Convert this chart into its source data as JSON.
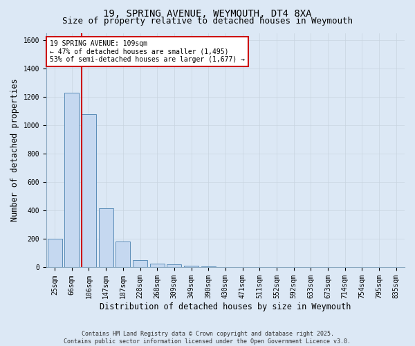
{
  "title_line1": "19, SPRING AVENUE, WEYMOUTH, DT4 8XA",
  "title_line2": "Size of property relative to detached houses in Weymouth",
  "xlabel": "Distribution of detached houses by size in Weymouth",
  "ylabel": "Number of detached properties",
  "categories": [
    "25sqm",
    "66sqm",
    "106sqm",
    "147sqm",
    "187sqm",
    "228sqm",
    "268sqm",
    "309sqm",
    "349sqm",
    "390sqm",
    "430sqm",
    "471sqm",
    "511sqm",
    "552sqm",
    "592sqm",
    "633sqm",
    "673sqm",
    "714sqm",
    "754sqm",
    "795sqm",
    "835sqm"
  ],
  "values": [
    200,
    1230,
    1080,
    415,
    180,
    50,
    25,
    20,
    10,
    8,
    0,
    0,
    0,
    0,
    0,
    0,
    0,
    0,
    0,
    0,
    0
  ],
  "bar_color": "#c5d8f0",
  "bar_edge_color": "#5b8db8",
  "vline_color": "#cc0000",
  "annotation_text": "19 SPRING AVENUE: 109sqm\n← 47% of detached houses are smaller (1,495)\n53% of semi-detached houses are larger (1,677) →",
  "annotation_box_color": "#ffffff",
  "annotation_box_edge_color": "#cc0000",
  "ylim": [
    0,
    1650
  ],
  "yticks": [
    0,
    200,
    400,
    600,
    800,
    1000,
    1200,
    1400,
    1600
  ],
  "grid_color": "#c8d4e0",
  "bg_color": "#dce8f5",
  "plot_bg_color": "#dce8f5",
  "footer_text": "Contains HM Land Registry data © Crown copyright and database right 2025.\nContains public sector information licensed under the Open Government Licence v3.0.",
  "title_fontsize": 10,
  "subtitle_fontsize": 9,
  "tick_fontsize": 7,
  "label_fontsize": 8.5,
  "annotation_fontsize": 7,
  "footer_fontsize": 6
}
